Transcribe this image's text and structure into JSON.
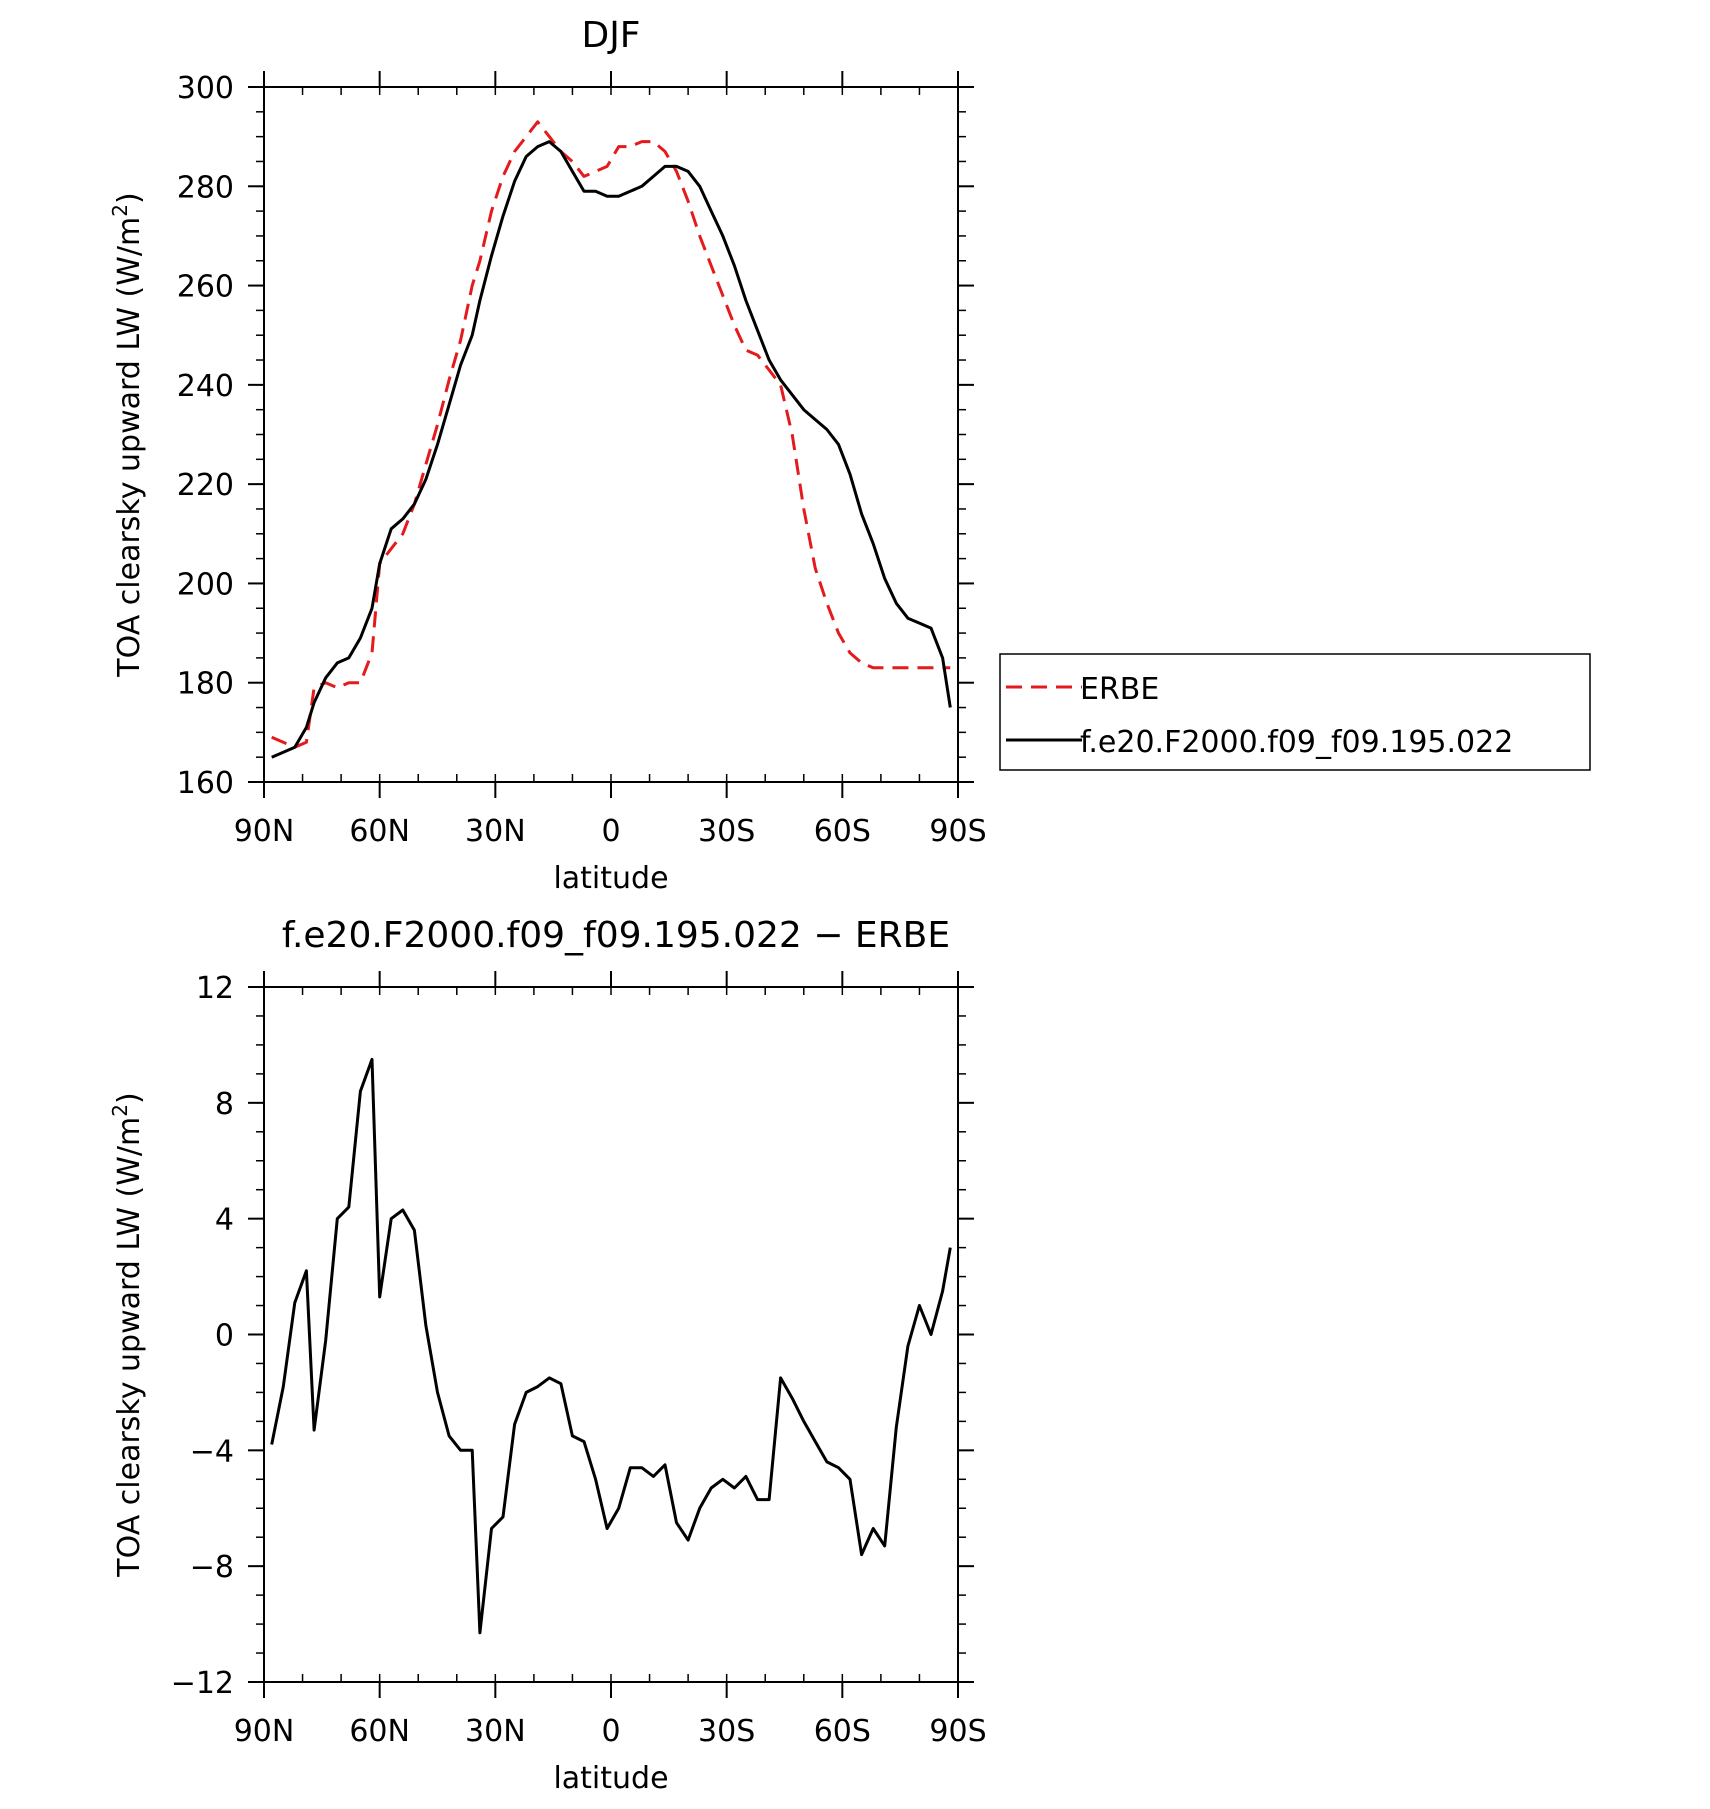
{
  "chart_data": [
    {
      "type": "line",
      "title": "DJF",
      "xlabel": "latitude",
      "ylabel": "TOA clearsky upward LW (W/m",
      "ylabel_sup": "2",
      "ylabel_close": ")",
      "xlim": [
        90,
        -90
      ],
      "ylim": [
        160,
        300
      ],
      "xticks": [
        90,
        60,
        30,
        0,
        -30,
        -60,
        -90
      ],
      "xtick_labels": [
        "90N",
        "60N",
        "30N",
        "0",
        "30S",
        "60S",
        "90S"
      ],
      "yticks": [
        160,
        180,
        200,
        220,
        240,
        260,
        280,
        300
      ],
      "ytick_labels": [
        "160",
        "180",
        "200",
        "220",
        "240",
        "260",
        "280",
        "300"
      ],
      "legend": {
        "position": "right"
      },
      "series": [
        {
          "name": "ERBE",
          "color": "#e41a1c",
          "dash": "dashed",
          "x": [
            88,
            85,
            82,
            79,
            77,
            74,
            71,
            68,
            65,
            62,
            60,
            57,
            54,
            51,
            48,
            45,
            42,
            39,
            36,
            34,
            31,
            28,
            25,
            22,
            19,
            16,
            13,
            10,
            7,
            4,
            1,
            -2,
            -5,
            -8,
            -11,
            -14,
            -17,
            -20,
            -23,
            -26,
            -29,
            -32,
            -35,
            -38,
            -41,
            -44,
            -47,
            -50,
            -53,
            -56,
            -59,
            -62,
            -65,
            -68,
            -71,
            -74,
            -77,
            -80,
            -83,
            -86,
            -88
          ],
          "y": [
            169,
            168,
            167,
            168,
            179,
            180,
            179,
            180,
            180,
            186,
            204,
            207,
            210,
            216,
            224,
            232,
            241,
            249,
            260,
            265,
            275,
            282,
            287,
            290,
            293,
            290,
            287,
            285,
            282,
            283,
            284,
            288,
            288,
            289,
            289,
            287,
            283,
            277,
            270,
            264,
            258,
            252,
            247,
            246,
            243,
            240,
            230,
            215,
            203,
            196,
            190,
            186,
            184,
            183,
            183,
            183,
            183,
            183,
            183,
            183,
            183
          ]
        },
        {
          "name": "f.e20.F2000.f09_f09.195.022",
          "color": "#000000",
          "dash": "solid",
          "x": [
            88,
            85,
            82,
            79,
            77,
            74,
            71,
            68,
            65,
            62,
            60,
            57,
            54,
            51,
            48,
            45,
            42,
            39,
            36,
            34,
            31,
            28,
            25,
            22,
            19,
            16,
            13,
            10,
            7,
            4,
            1,
            -2,
            -5,
            -8,
            -11,
            -14,
            -17,
            -20,
            -23,
            -26,
            -29,
            -32,
            -35,
            -38,
            -41,
            -44,
            -47,
            -50,
            -53,
            -56,
            -59,
            -62,
            -65,
            -68,
            -71,
            -74,
            -77,
            -80,
            -83,
            -86,
            -88
          ],
          "y": [
            165,
            166,
            167,
            171,
            176,
            181,
            184,
            185,
            189,
            195,
            204,
            211,
            213,
            216,
            221,
            228,
            236,
            244,
            250,
            257,
            266,
            274,
            281,
            286,
            288,
            289,
            287,
            283,
            279,
            279,
            278,
            278,
            279,
            280,
            282,
            284,
            284,
            283,
            280,
            275,
            270,
            264,
            257,
            251,
            245,
            241,
            238,
            235,
            233,
            231,
            228,
            222,
            214,
            208,
            201,
            196,
            193,
            192,
            191,
            185,
            175
          ]
        }
      ]
    },
    {
      "type": "line",
      "title": "f.e20.F2000.f09_f09.195.022 − ERBE",
      "xlabel": "latitude",
      "ylabel": "TOA clearsky upward LW (W/m",
      "ylabel_sup": "2",
      "ylabel_close": ")",
      "xlim": [
        90,
        -90
      ],
      "ylim": [
        -12,
        12
      ],
      "xticks": [
        90,
        60,
        30,
        0,
        -30,
        -60,
        -90
      ],
      "xtick_labels": [
        "90N",
        "60N",
        "30N",
        "0",
        "30S",
        "60S",
        "90S"
      ],
      "yticks": [
        -12,
        -8,
        -4,
        0,
        4,
        8,
        12
      ],
      "ytick_labels": [
        "−12",
        "−8",
        "−4",
        "0",
        "4",
        "8",
        "12"
      ],
      "series": [
        {
          "name": "",
          "color": "#000000",
          "dash": "solid",
          "x": [
            88,
            85,
            82,
            79,
            77,
            74,
            71,
            68,
            65,
            62,
            60,
            57,
            54,
            51,
            48,
            45,
            42,
            39,
            36,
            34,
            31,
            28,
            25,
            22,
            19,
            16,
            13,
            10,
            7,
            4,
            1,
            -2,
            -5,
            -8,
            -11,
            -14,
            -17,
            -20,
            -23,
            -26,
            -29,
            -32,
            -35,
            -38,
            -41,
            -44,
            -47,
            -50,
            -53,
            -56,
            -59,
            -62,
            -65,
            -68,
            -71,
            -74,
            -77,
            -80,
            -83,
            -86,
            -88
          ],
          "y": [
            -3.8,
            -1.8,
            1.1,
            2.2,
            -3.3,
            -0.2,
            4.0,
            4.4,
            8.4,
            9.5,
            1.3,
            4.0,
            4.3,
            3.6,
            0.3,
            -2.0,
            -3.5,
            -4.0,
            -4.0,
            -10.3,
            -6.7,
            -6.3,
            -3.1,
            -2.0,
            -1.8,
            -1.5,
            -1.7,
            -3.5,
            -3.7,
            -5.0,
            -6.7,
            -6.0,
            -4.6,
            -4.6,
            -4.9,
            -4.5,
            -6.5,
            -7.1,
            -6.0,
            -5.3,
            -5.0,
            -5.3,
            -4.9,
            -5.7,
            -5.7,
            -1.5,
            -2.2,
            -3.0,
            -3.7,
            -4.4,
            -4.6,
            -5.0,
            -7.6,
            -6.7,
            -7.3,
            -3.2,
            -0.4,
            1.0,
            0.0,
            1.5,
            3.0
          ]
        }
      ]
    }
  ]
}
